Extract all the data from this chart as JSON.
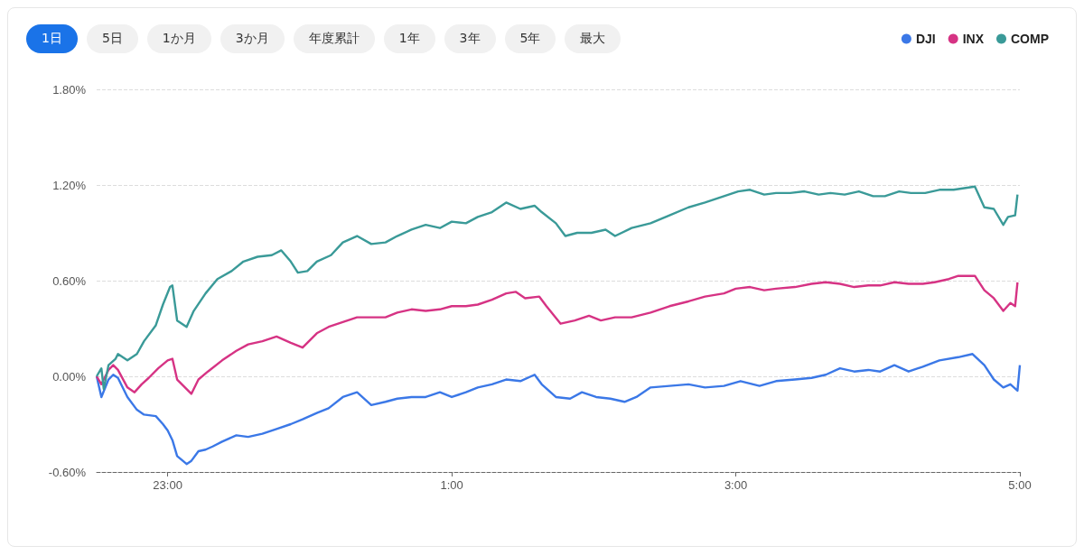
{
  "chart_data": {
    "type": "line",
    "annotations": [
      "1日",
      "5日",
      "1か月",
      "3か月",
      "年度累計",
      "1年",
      "3年",
      "5年",
      "最大"
    ],
    "xlim": [
      "--01-01T22:30",
      "--01-02T05:00"
    ],
    "xticks": [
      {
        "value": "--01-01T23:00",
        "label": "23:00"
      },
      {
        "value": "--01-02T01:00",
        "label": "1:00"
      },
      {
        "value": "--01-02T03:00",
        "label": "3:00"
      },
      {
        "value": "--01-02T05:00",
        "label": "5:00"
      }
    ],
    "ylim": [
      -0.6,
      1.8
    ],
    "yticks": [
      {
        "value": -0.6,
        "label": "-0.60%"
      },
      {
        "value": 0,
        "label": "0.00%"
      },
      {
        "value": 0.6,
        "label": "0.60%"
      },
      {
        "value": 1.2,
        "label": "1.20%"
      },
      {
        "value": 1.8,
        "label": "1.80%"
      }
    ],
    "grid": "y",
    "legend": "top right",
    "series": [
      {
        "name": "DJI",
        "color": "#3b78e7",
        "x": [
          "--01-01T22:30",
          "--01-01T22:32",
          "--01-01T22:35",
          "--01-01T22:37",
          "--01-01T22:39",
          "--01-01T22:43",
          "--01-01T22:47",
          "--01-01T22:50",
          "--01-01T22:55",
          "--01-01T22:58",
          "--01-01T23:00",
          "--01-01T23:02",
          "--01-01T23:04",
          "--01-01T23:08",
          "--01-01T23:10",
          "--01-01T23:13",
          "--01-01T23:16",
          "--01-01T23:19",
          "--01-01T23:23",
          "--01-01T23:29",
          "--01-01T23:34",
          "--01-01T23:40",
          "--01-01T23:46",
          "--01-01T23:52",
          "--01-01T23:57",
          "--01-02T00:03",
          "--01-02T00:08",
          "--01-02T00:14",
          "--01-02T00:20",
          "--01-02T00:26",
          "--01-02T00:32",
          "--01-02T00:37",
          "--01-02T00:43",
          "--01-02T00:49",
          "--01-02T00:55",
          "--01-02T01:00",
          "--01-02T01:06",
          "--01-02T01:11",
          "--01-02T01:17",
          "--01-02T01:23",
          "--01-02T01:29",
          "--01-02T01:35",
          "--01-02T01:38",
          "--01-02T01:44",
          "--01-02T01:50",
          "--01-02T01:55",
          "--01-02T02:01",
          "--01-02T02:07",
          "--01-02T02:13",
          "--01-02T02:18",
          "--01-02T02:24",
          "--01-02T02:32",
          "--01-02T02:40",
          "--01-02T02:47",
          "--01-02T02:55",
          "--01-02T03:02",
          "--01-02T03:10",
          "--01-02T03:17",
          "--01-02T03:25",
          "--01-02T03:32",
          "--01-02T03:38",
          "--01-02T03:44",
          "--01-02T03:50",
          "--01-02T03:56",
          "--01-02T04:01",
          "--01-02T04:07",
          "--01-02T04:13",
          "--01-02T04:19",
          "--01-02T04:26",
          "--01-02T04:34",
          "--01-02T04:40",
          "--01-02T04:45",
          "--01-02T04:49",
          "--01-02T04:53",
          "--01-02T04:56",
          "--01-02T04:59",
          "--01-02T05:00"
        ],
        "values": [
          0,
          -0.13,
          -0.02,
          0.01,
          -0.01,
          -0.13,
          -0.21,
          -0.24,
          -0.25,
          -0.3,
          -0.34,
          -0.4,
          -0.5,
          -0.55,
          -0.53,
          -0.47,
          -0.46,
          -0.44,
          -0.41,
          -0.37,
          -0.38,
          -0.36,
          -0.33,
          -0.3,
          -0.27,
          -0.23,
          -0.2,
          -0.13,
          -0.1,
          -0.18,
          -0.16,
          -0.14,
          -0.13,
          -0.13,
          -0.1,
          -0.13,
          -0.1,
          -0.07,
          -0.05,
          -0.02,
          -0.03,
          0.01,
          -0.05,
          -0.13,
          -0.14,
          -0.1,
          -0.13,
          -0.14,
          -0.16,
          -0.13,
          -0.07,
          -0.06,
          -0.05,
          -0.07,
          -0.06,
          -0.03,
          -0.06,
          -0.03,
          -0.02,
          -0.01,
          0.01,
          0.05,
          0.03,
          0.04,
          0.03,
          0.07,
          0.03,
          0.06,
          0.1,
          0.12,
          0.14,
          0.07,
          -0.02,
          -0.07,
          -0.05,
          -0.09,
          0.07
        ]
      },
      {
        "name": "INX",
        "color": "#d63384",
        "x": [
          "--01-01T22:30",
          "--01-01T22:32",
          "--01-01T22:35",
          "--01-01T22:37",
          "--01-01T22:39",
          "--01-01T22:43",
          "--01-01T22:46",
          "--01-01T22:49",
          "--01-01T22:52",
          "--01-01T22:56",
          "--01-01T23:00",
          "--01-01T23:02",
          "--01-01T23:04",
          "--01-01T23:08",
          "--01-01T23:10",
          "--01-01T23:13",
          "--01-01T23:17",
          "--01-01T23:23",
          "--01-01T23:29",
          "--01-01T23:34",
          "--01-01T23:40",
          "--01-01T23:46",
          "--01-01T23:52",
          "--01-01T23:57",
          "--01-02T00:03",
          "--01-02T00:08",
          "--01-02T00:14",
          "--01-02T00:20",
          "--01-02T00:26",
          "--01-02T00:32",
          "--01-02T00:37",
          "--01-02T00:43",
          "--01-02T00:49",
          "--01-02T00:55",
          "--01-02T01:00",
          "--01-02T01:06",
          "--01-02T01:11",
          "--01-02T01:17",
          "--01-02T01:23",
          "--01-02T01:27",
          "--01-02T01:31",
          "--01-02T01:37",
          "--01-02T01:40",
          "--01-02T01:46",
          "--01-02T01:52",
          "--01-02T01:58",
          "--01-02T02:03",
          "--01-02T02:09",
          "--01-02T02:16",
          "--01-02T02:24",
          "--01-02T02:32",
          "--01-02T02:40",
          "--01-02T02:47",
          "--01-02T02:55",
          "--01-02T03:00",
          "--01-02T03:06",
          "--01-02T03:12",
          "--01-02T03:17",
          "--01-02T03:25",
          "--01-02T03:32",
          "--01-02T03:38",
          "--01-02T03:44",
          "--01-02T03:50",
          "--01-02T03:56",
          "--01-02T04:01",
          "--01-02T04:07",
          "--01-02T04:13",
          "--01-02T04:19",
          "--01-02T04:24",
          "--01-02T04:30",
          "--01-02T04:34",
          "--01-02T04:41",
          "--01-02T04:45",
          "--01-02T04:49",
          "--01-02T04:53",
          "--01-02T04:56",
          "--01-02T04:58",
          "--01-02T04:59"
        ],
        "values": [
          0,
          -0.05,
          0.04,
          0.07,
          0.04,
          -0.07,
          -0.1,
          -0.05,
          -0.01,
          0.05,
          0.1,
          0.11,
          -0.02,
          -0.08,
          -0.11,
          -0.02,
          0.03,
          0.1,
          0.16,
          0.2,
          0.22,
          0.25,
          0.21,
          0.18,
          0.27,
          0.31,
          0.34,
          0.37,
          0.37,
          0.37,
          0.4,
          0.42,
          0.41,
          0.42,
          0.44,
          0.44,
          0.45,
          0.48,
          0.52,
          0.53,
          0.49,
          0.5,
          0.44,
          0.33,
          0.35,
          0.38,
          0.35,
          0.37,
          0.37,
          0.4,
          0.44,
          0.47,
          0.5,
          0.52,
          0.55,
          0.56,
          0.54,
          0.55,
          0.56,
          0.58,
          0.59,
          0.58,
          0.56,
          0.57,
          0.57,
          0.59,
          0.58,
          0.58,
          0.59,
          0.61,
          0.63,
          0.63,
          0.54,
          0.49,
          0.41,
          0.46,
          0.44,
          0.59
        ]
      },
      {
        "name": "COMP",
        "color": "#3a9a98",
        "x": [
          "--01-01T22:30",
          "--01-01T22:32",
          "--01-01T22:33",
          "--01-01T22:35",
          "--01-01T22:38",
          "--01-01T22:39",
          "--01-01T22:43",
          "--01-01T22:47",
          "--01-01T22:50",
          "--01-01T22:55",
          "--01-01T22:58",
          "--01-01T23:01",
          "--01-01T23:02",
          "--01-01T23:04",
          "--01-01T23:08",
          "--01-01T23:11",
          "--01-01T23:16",
          "--01-01T23:21",
          "--01-01T23:27",
          "--01-01T23:32",
          "--01-01T23:38",
          "--01-01T23:44",
          "--01-01T23:48",
          "--01-01T23:52",
          "--01-01T23:55",
          "--01-01T23:59",
          "--01-02T00:03",
          "--01-02T00:09",
          "--01-02T00:14",
          "--01-02T00:20",
          "--01-02T00:26",
          "--01-02T00:32",
          "--01-02T00:37",
          "--01-02T00:43",
          "--01-02T00:49",
          "--01-02T00:55",
          "--01-02T01:00",
          "--01-02T01:06",
          "--01-02T01:11",
          "--01-02T01:17",
          "--01-02T01:23",
          "--01-02T01:29",
          "--01-02T01:35",
          "--01-02T01:38",
          "--01-02T01:44",
          "--01-02T01:48",
          "--01-02T01:53",
          "--01-02T01:59",
          "--01-02T02:05",
          "--01-02T02:09",
          "--01-02T02:16",
          "--01-02T02:24",
          "--01-02T02:32",
          "--01-02T02:40",
          "--01-02T02:47",
          "--01-02T02:55",
          "--01-02T03:01",
          "--01-02T03:06",
          "--01-02T03:12",
          "--01-02T03:17",
          "--01-02T03:23",
          "--01-02T03:29",
          "--01-02T03:35",
          "--01-02T03:40",
          "--01-02T03:46",
          "--01-02T03:52",
          "--01-02T03:58",
          "--01-02T04:03",
          "--01-02T04:09",
          "--01-02T04:14",
          "--01-02T04:20",
          "--01-02T04:26",
          "--01-02T04:32",
          "--01-02T04:41",
          "--01-02T04:45",
          "--01-02T04:49",
          "--01-02T04:53",
          "--01-02T04:55",
          "--01-02T04:58",
          "--01-02T04:59"
        ],
        "values": [
          0,
          0.05,
          -0.08,
          0.07,
          0.11,
          0.14,
          0.1,
          0.14,
          0.22,
          0.32,
          0.45,
          0.56,
          0.57,
          0.35,
          0.31,
          0.41,
          0.52,
          0.61,
          0.66,
          0.72,
          0.75,
          0.76,
          0.79,
          0.72,
          0.65,
          0.66,
          0.72,
          0.76,
          0.84,
          0.88,
          0.83,
          0.84,
          0.88,
          0.92,
          0.95,
          0.93,
          0.97,
          0.96,
          1.0,
          1.03,
          1.09,
          1.05,
          1.07,
          1.03,
          0.96,
          0.88,
          0.9,
          0.9,
          0.92,
          0.88,
          0.93,
          0.96,
          1.01,
          1.06,
          1.09,
          1.13,
          1.16,
          1.17,
          1.14,
          1.15,
          1.15,
          1.16,
          1.14,
          1.15,
          1.14,
          1.16,
          1.13,
          1.13,
          1.16,
          1.15,
          1.15,
          1.17,
          1.17,
          1.19,
          1.06,
          1.05,
          0.95,
          1.0,
          1.01,
          1.14
        ]
      }
    ]
  }
}
